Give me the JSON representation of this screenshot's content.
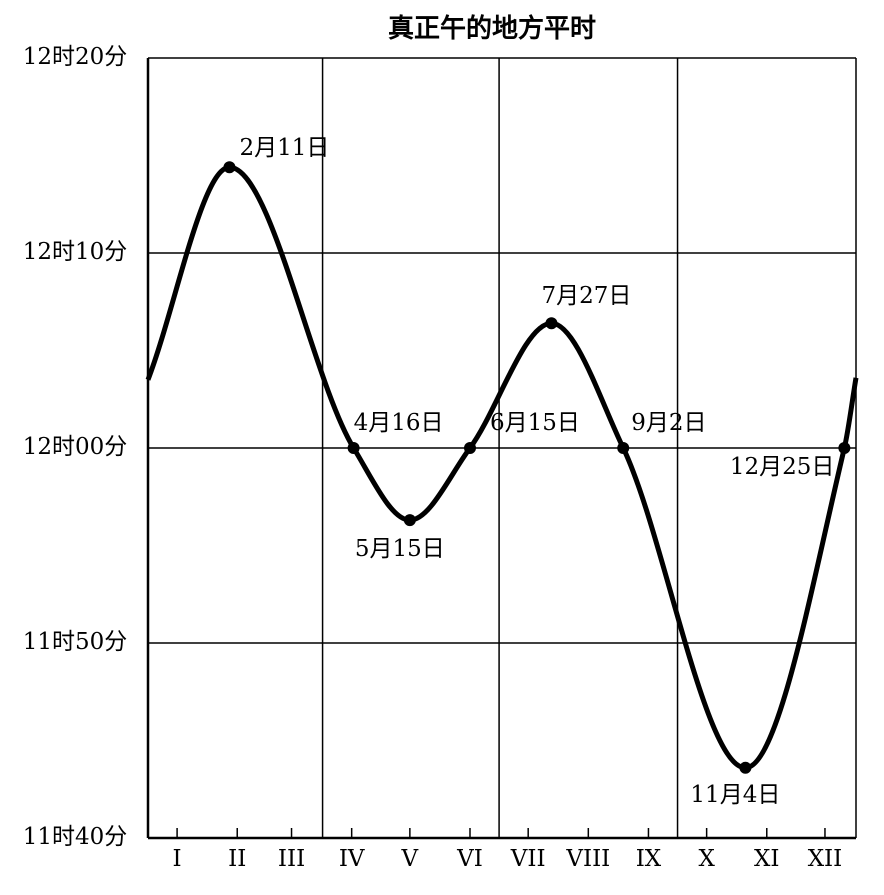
{
  "chart_data": {
    "type": "line",
    "title": "真正午的地方平时",
    "x": [
      0,
      42,
      106,
      135,
      166,
      208,
      245,
      308,
      359,
      365
    ],
    "values": [
      723.5,
      734.4,
      720,
      716.3,
      720,
      726.4,
      720,
      703.6,
      720,
      723.6
    ],
    "point_labels": [
      null,
      "2月11日",
      "4月16日",
      "5月15日",
      "6月15日",
      "7月27日",
      "9月2日",
      "11月4日",
      "12月25日",
      null
    ],
    "color": "#000000",
    "xlim": [
      0,
      365
    ],
    "xticks": [
      {
        "value": 15,
        "label": "I"
      },
      {
        "value": 46,
        "label": "II"
      },
      {
        "value": 74,
        "label": "III"
      },
      {
        "value": 105,
        "label": "IV"
      },
      {
        "value": 135,
        "label": "V"
      },
      {
        "value": 166,
        "label": "VI"
      },
      {
        "value": 196,
        "label": "VII"
      },
      {
        "value": 227,
        "label": "VIII"
      },
      {
        "value": 258,
        "label": "IX"
      },
      {
        "value": 288,
        "label": "X"
      },
      {
        "value": 319,
        "label": "XI"
      },
      {
        "value": 349,
        "label": "XII"
      }
    ],
    "xgrid": [
      90,
      181,
      273
    ],
    "ylim": [
      700,
      740
    ],
    "yticks": [
      {
        "value": 700,
        "label": "11时40分"
      },
      {
        "value": 710,
        "label": "11时50分"
      },
      {
        "value": 720,
        "label": "12时00分"
      },
      {
        "value": 730,
        "label": "12时10分"
      },
      {
        "value": 740,
        "label": "12时20分"
      }
    ],
    "grid": true
  }
}
